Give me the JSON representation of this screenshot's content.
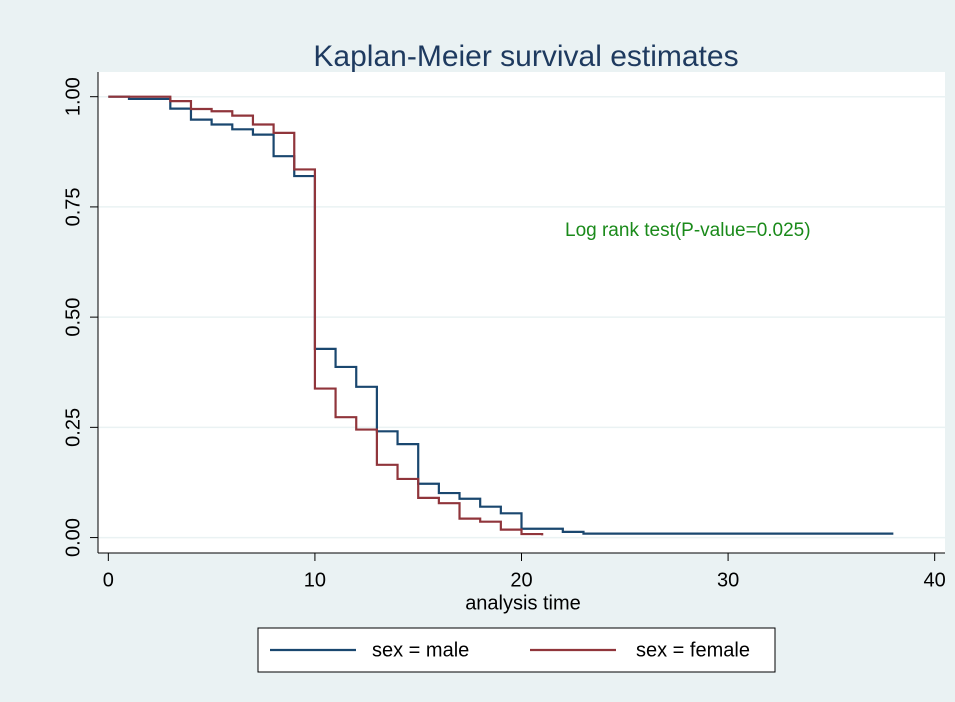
{
  "chart_data": {
    "type": "step",
    "title": "Kaplan-Meier survival estimates",
    "x_label": "analysis time",
    "annotation": "Log rank test(P-value=0.025)",
    "xlim": [
      -0.5,
      40.5
    ],
    "xticks": [
      0,
      10,
      20,
      30,
      40
    ],
    "ylim": [
      -0.035,
      1.056
    ],
    "yticks": [
      {
        "value": 0,
        "label": "0.00"
      },
      {
        "value": 0.25,
        "label": "0.25"
      },
      {
        "value": 0.5,
        "label": "0.50"
      },
      {
        "value": 0.75,
        "label": "0.75"
      },
      {
        "value": 1,
        "label": "1.00"
      }
    ],
    "grid": true,
    "series": [
      {
        "name": "sex = male",
        "color": "#1a476f",
        "x": [
          0,
          1,
          3,
          4,
          5,
          6,
          7,
          8,
          9,
          10,
          11,
          12,
          13,
          14,
          15,
          16,
          17,
          18,
          19,
          20,
          22,
          23,
          38
        ],
        "values": [
          1.0,
          0.995,
          0.973,
          0.948,
          0.937,
          0.926,
          0.914,
          0.865,
          0.82,
          0.428,
          0.387,
          0.342,
          0.241,
          0.212,
          0.122,
          0.101,
          0.088,
          0.07,
          0.055,
          0.02,
          0.013,
          0.009,
          0.009
        ]
      },
      {
        "name": "sex = female",
        "color": "#90353b",
        "x": [
          0,
          3,
          4,
          5,
          6,
          7,
          8,
          9,
          10,
          11,
          12,
          13,
          14,
          15,
          16,
          17,
          18,
          19,
          20,
          21
        ],
        "values": [
          1.0,
          0.99,
          0.972,
          0.967,
          0.957,
          0.937,
          0.918,
          0.835,
          0.338,
          0.273,
          0.245,
          0.165,
          0.133,
          0.09,
          0.078,
          0.043,
          0.036,
          0.018,
          0.008,
          0.005
        ]
      }
    ]
  }
}
